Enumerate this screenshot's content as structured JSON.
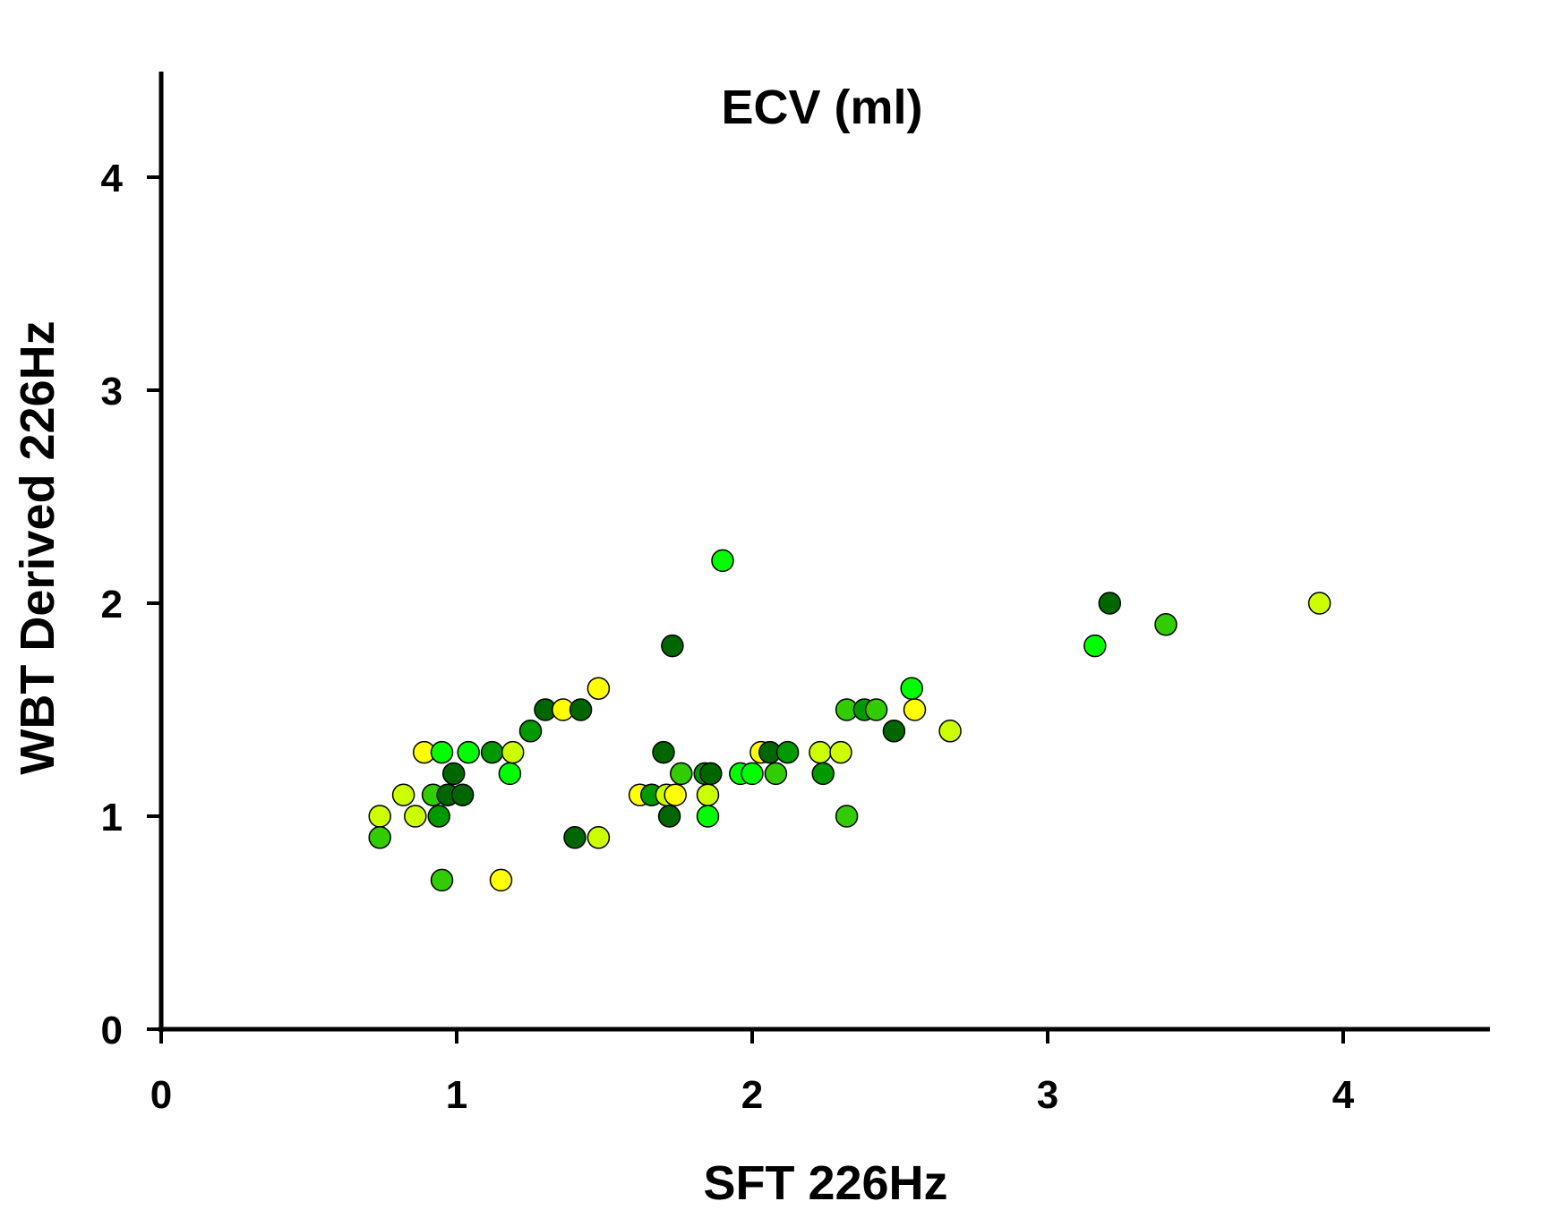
{
  "chart_data": {
    "type": "scatter",
    "title": "ECV (ml)",
    "xlabel": "SFT 226Hz",
    "ylabel": "WBT Derived 226Hz",
    "xlim": [
      0,
      4.5
    ],
    "ylim": [
      0,
      4.5
    ],
    "xticks": [
      "0",
      "1",
      "2",
      "3",
      "4"
    ],
    "yticks": [
      "0",
      "1",
      "2",
      "3",
      "4"
    ],
    "grid": false,
    "marker_colors": [
      "#ffff00",
      "#ccff00",
      "#00ff00",
      "#33cc00",
      "#009900",
      "#006600"
    ],
    "points": [
      {
        "x": 0.74,
        "y": 1.0,
        "c": 1
      },
      {
        "x": 0.74,
        "y": 0.9,
        "c": 3
      },
      {
        "x": 0.82,
        "y": 1.1,
        "c": 1
      },
      {
        "x": 0.86,
        "y": 1.0,
        "c": 1
      },
      {
        "x": 0.89,
        "y": 1.3,
        "c": 0
      },
      {
        "x": 0.92,
        "y": 1.1,
        "c": 3
      },
      {
        "x": 0.94,
        "y": 1.0,
        "c": 4
      },
      {
        "x": 0.95,
        "y": 1.3,
        "c": 2
      },
      {
        "x": 0.97,
        "y": 1.1,
        "c": 5
      },
      {
        "x": 0.99,
        "y": 1.2,
        "c": 5
      },
      {
        "x": 1.02,
        "y": 1.1,
        "c": 5
      },
      {
        "x": 0.95,
        "y": 0.7,
        "c": 3
      },
      {
        "x": 1.04,
        "y": 1.3,
        "c": 2
      },
      {
        "x": 1.12,
        "y": 1.3,
        "c": 4
      },
      {
        "x": 1.15,
        "y": 0.7,
        "c": 0
      },
      {
        "x": 1.18,
        "y": 1.2,
        "c": 2
      },
      {
        "x": 1.19,
        "y": 1.3,
        "c": 1
      },
      {
        "x": 1.25,
        "y": 1.4,
        "c": 4
      },
      {
        "x": 1.3,
        "y": 1.5,
        "c": 5
      },
      {
        "x": 1.36,
        "y": 1.5,
        "c": 0
      },
      {
        "x": 1.4,
        "y": 0.9,
        "c": 5
      },
      {
        "x": 1.42,
        "y": 1.5,
        "c": 5
      },
      {
        "x": 1.48,
        "y": 0.9,
        "c": 1
      },
      {
        "x": 1.48,
        "y": 1.6,
        "c": 0
      },
      {
        "x": 1.62,
        "y": 1.1,
        "c": 0
      },
      {
        "x": 1.66,
        "y": 1.1,
        "c": 4
      },
      {
        "x": 1.7,
        "y": 1.3,
        "c": 5
      },
      {
        "x": 1.71,
        "y": 1.1,
        "c": 1
      },
      {
        "x": 1.72,
        "y": 1.0,
        "c": 5
      },
      {
        "x": 1.73,
        "y": 1.8,
        "c": 5
      },
      {
        "x": 1.74,
        "y": 1.1,
        "c": 0
      },
      {
        "x": 1.76,
        "y": 1.2,
        "c": 3
      },
      {
        "x": 1.84,
        "y": 1.2,
        "c": 4
      },
      {
        "x": 1.85,
        "y": 1.1,
        "c": 1
      },
      {
        "x": 1.85,
        "y": 1.0,
        "c": 2
      },
      {
        "x": 1.86,
        "y": 1.2,
        "c": 5
      },
      {
        "x": 1.9,
        "y": 2.2,
        "c": 2
      },
      {
        "x": 1.96,
        "y": 1.2,
        "c": 2
      },
      {
        "x": 2.0,
        "y": 1.2,
        "c": 2
      },
      {
        "x": 2.03,
        "y": 1.3,
        "c": 0
      },
      {
        "x": 2.06,
        "y": 1.3,
        "c": 5
      },
      {
        "x": 2.08,
        "y": 1.2,
        "c": 3
      },
      {
        "x": 2.12,
        "y": 1.3,
        "c": 4
      },
      {
        "x": 2.23,
        "y": 1.3,
        "c": 1
      },
      {
        "x": 2.24,
        "y": 1.2,
        "c": 4
      },
      {
        "x": 2.3,
        "y": 1.3,
        "c": 1
      },
      {
        "x": 2.32,
        "y": 1.5,
        "c": 3
      },
      {
        "x": 2.32,
        "y": 1.0,
        "c": 3
      },
      {
        "x": 2.38,
        "y": 1.5,
        "c": 4
      },
      {
        "x": 2.42,
        "y": 1.5,
        "c": 3
      },
      {
        "x": 2.48,
        "y": 1.4,
        "c": 5
      },
      {
        "x": 2.54,
        "y": 1.6,
        "c": 2
      },
      {
        "x": 2.55,
        "y": 1.5,
        "c": 0
      },
      {
        "x": 2.67,
        "y": 1.4,
        "c": 1
      },
      {
        "x": 3.16,
        "y": 1.8,
        "c": 2
      },
      {
        "x": 3.21,
        "y": 2.0,
        "c": 5
      },
      {
        "x": 3.4,
        "y": 1.9,
        "c": 3
      },
      {
        "x": 3.92,
        "y": 2.0,
        "c": 1
      }
    ]
  }
}
